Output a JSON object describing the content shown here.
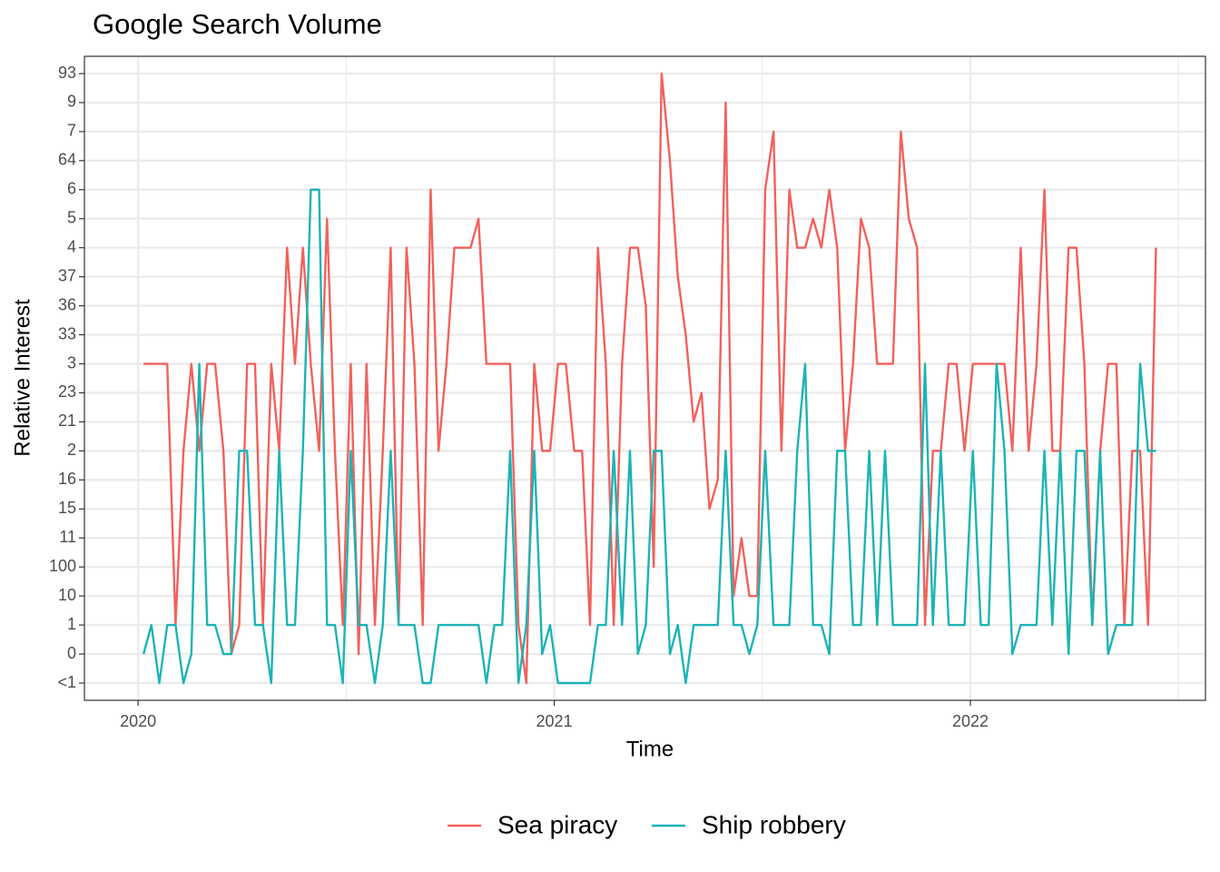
{
  "chart_data": {
    "type": "line",
    "title": "Google Search Volume",
    "xlabel": "Time",
    "ylabel": "Relative Interest",
    "xlim": [
      2019.871,
      2022.565
    ],
    "xticks": [
      2020,
      2021,
      2022
    ],
    "xminor_ticks": [
      2020.5,
      2021.5,
      2022.5
    ],
    "ycategories": [
      "<1",
      "0",
      "1",
      "10",
      "100",
      "11",
      "15",
      "16",
      "2",
      "21",
      "23",
      "3",
      "33",
      "36",
      "37",
      "4",
      "5",
      "6",
      "64",
      "7",
      "9",
      "93"
    ],
    "grid": true,
    "legend": "bottom",
    "x": [
      2020.013,
      2020.032,
      2020.051,
      2020.07,
      2020.09,
      2020.109,
      2020.128,
      2020.147,
      2020.166,
      2020.185,
      2020.205,
      2020.224,
      2020.243,
      2020.262,
      2020.281,
      2020.3,
      2020.32,
      2020.339,
      2020.358,
      2020.377,
      2020.396,
      2020.415,
      2020.435,
      2020.454,
      2020.473,
      2020.492,
      2020.511,
      2020.53,
      2020.549,
      2020.569,
      2020.588,
      2020.607,
      2020.626,
      2020.645,
      2020.664,
      2020.684,
      2020.703,
      2020.722,
      2020.741,
      2020.76,
      2020.779,
      2020.799,
      2020.818,
      2020.837,
      2020.856,
      2020.875,
      2020.894,
      2020.914,
      2020.933,
      2020.952,
      2020.971,
      2020.99,
      2021.009,
      2021.028,
      2021.048,
      2021.067,
      2021.086,
      2021.105,
      2021.124,
      2021.143,
      2021.163,
      2021.182,
      2021.201,
      2021.22,
      2021.239,
      2021.258,
      2021.278,
      2021.297,
      2021.316,
      2021.335,
      2021.354,
      2021.373,
      2021.393,
      2021.412,
      2021.431,
      2021.45,
      2021.469,
      2021.488,
      2021.507,
      2021.527,
      2021.546,
      2021.565,
      2021.584,
      2021.603,
      2021.622,
      2021.642,
      2021.661,
      2021.68,
      2021.699,
      2021.718,
      2021.737,
      2021.757,
      2021.776,
      2021.795,
      2021.814,
      2021.833,
      2021.852,
      2021.872,
      2021.891,
      2021.91,
      2021.929,
      2021.948,
      2021.967,
      2021.986,
      2022.006,
      2022.025,
      2022.044,
      2022.063,
      2022.082,
      2022.101,
      2022.121,
      2022.14,
      2022.159,
      2022.178,
      2022.197,
      2022.216,
      2022.236,
      2022.255,
      2022.274,
      2022.293,
      2022.312,
      2022.331,
      2022.351,
      2022.37,
      2022.389,
      2022.408,
      2022.427,
      2022.446
    ],
    "series": [
      {
        "name": "Sea piracy",
        "color": "#f0625d",
        "values": [
          "3",
          "3",
          "3",
          "3",
          "1",
          "2",
          "3",
          "2",
          "3",
          "3",
          "2",
          "0",
          "1",
          "3",
          "3",
          "1",
          "3",
          "2",
          "4",
          "3",
          "4",
          "3",
          "2",
          "5",
          "2",
          "1",
          "3",
          "0",
          "3",
          "1",
          "2",
          "4",
          "1",
          "4",
          "3",
          "1",
          "6",
          "2",
          "3",
          "4",
          "4",
          "4",
          "5",
          "3",
          "3",
          "3",
          "3",
          "1",
          "<1",
          "3",
          "2",
          "2",
          "3",
          "3",
          "2",
          "2",
          "1",
          "4",
          "3",
          "1",
          "3",
          "4",
          "4",
          "36",
          "100",
          "93",
          "64",
          "37",
          "33",
          "21",
          "23",
          "15",
          "16",
          "9",
          "10",
          "11",
          "10",
          "10",
          "6",
          "7",
          "2",
          "6",
          "4",
          "4",
          "5",
          "4",
          "6",
          "4",
          "2",
          "3",
          "5",
          "4",
          "3",
          "3",
          "3",
          "7",
          "5",
          "4",
          "1",
          "2",
          "2",
          "3",
          "3",
          "2",
          "3",
          "3",
          "3",
          "3",
          "3",
          "2",
          "4",
          "2",
          "3",
          "6",
          "2",
          "2",
          "4",
          "4",
          "3",
          "1",
          "2",
          "3",
          "3",
          "1",
          "2",
          "2",
          "1",
          "4"
        ]
      },
      {
        "name": "Ship robbery",
        "color": "#1db3b5",
        "values": [
          "0",
          "1",
          "<1",
          "1",
          "1",
          "<1",
          "0",
          "3",
          "1",
          "1",
          "0",
          "0",
          "2",
          "2",
          "1",
          "1",
          "<1",
          "2",
          "1",
          "1",
          "2",
          "6",
          "6",
          "1",
          "1",
          "<1",
          "2",
          "1",
          "1",
          "<1",
          "1",
          "2",
          "1",
          "1",
          "1",
          "<1",
          "<1",
          "1",
          "1",
          "1",
          "1",
          "1",
          "1",
          "<1",
          "1",
          "1",
          "2",
          "<1",
          "1",
          "2",
          "0",
          "1",
          "<1",
          "<1",
          "<1",
          "<1",
          "<1",
          "1",
          "1",
          "2",
          "1",
          "2",
          "0",
          "1",
          "2",
          "2",
          "0",
          "1",
          "<1",
          "1",
          "1",
          "1",
          "1",
          "2",
          "1",
          "1",
          "0",
          "1",
          "2",
          "1",
          "1",
          "1",
          "2",
          "3",
          "1",
          "1",
          "0",
          "2",
          "2",
          "1",
          "1",
          "2",
          "1",
          "2",
          "1",
          "1",
          "1",
          "1",
          "3",
          "1",
          "2",
          "1",
          "1",
          "1",
          "2",
          "1",
          "1",
          "3",
          "2",
          "0",
          "1",
          "1",
          "1",
          "2",
          "1",
          "2",
          "0",
          "2",
          "2",
          "1",
          "2",
          "0",
          "1",
          "1",
          "1",
          "3",
          "2",
          "2"
        ]
      }
    ]
  }
}
